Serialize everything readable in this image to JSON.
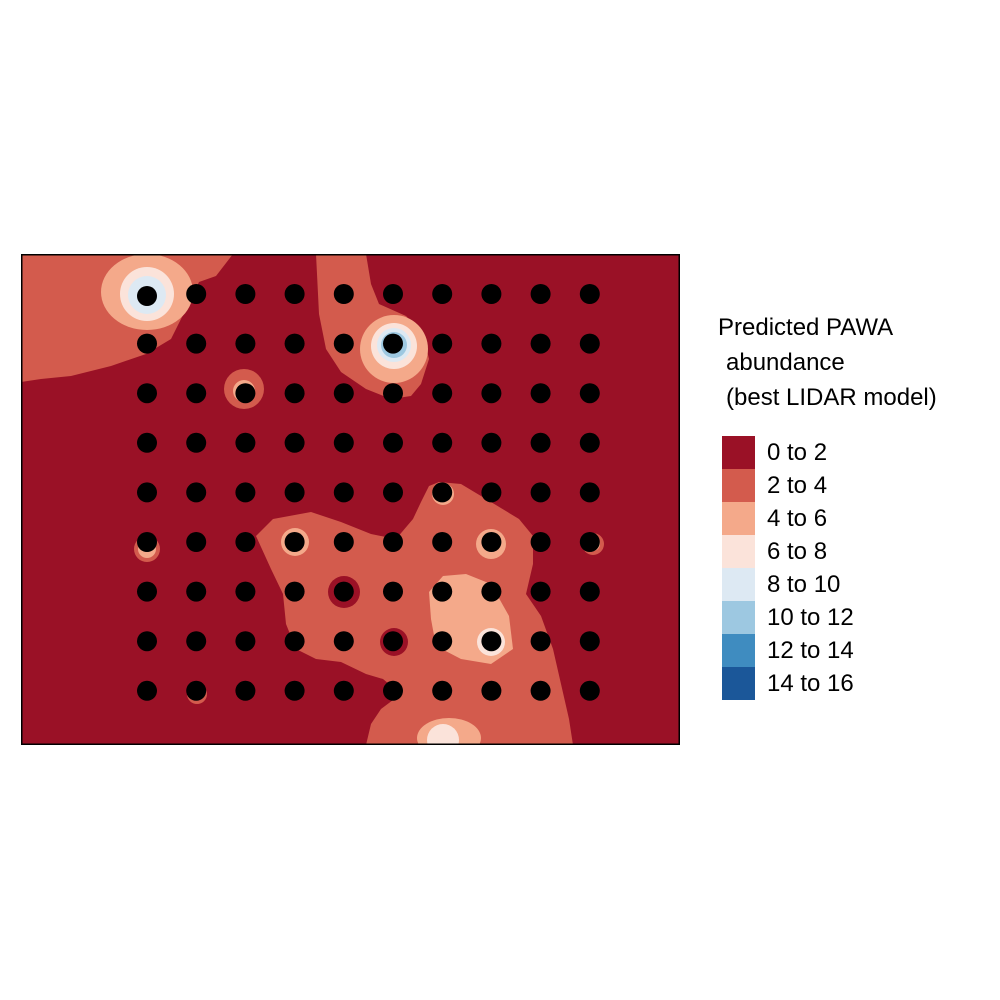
{
  "legend": {
    "title_lines": [
      "Predicted PAWA",
      "abundance",
      "(best LIDAR model)"
    ],
    "classes": [
      {
        "label": "0 to 2",
        "color": "#9A1126"
      },
      {
        "label": "2 to 4",
        "color": "#D35B4D"
      },
      {
        "label": "4 to 6",
        "color": "#F4A98A"
      },
      {
        "label": "6 to 8",
        "color": "#FBE3DA"
      },
      {
        "label": "8 to 10",
        "color": "#DDE9F3"
      },
      {
        "label": "10 to 12",
        "color": "#9DC8E1"
      },
      {
        "label": "12 to 14",
        "color": "#3F8CC0"
      },
      {
        "label": "14 to 16",
        "color": "#1B5799"
      }
    ]
  },
  "map": {
    "point_color": "#000000",
    "grid_columns": 10,
    "grid_rows": 9,
    "extra_point_row": 1
  }
}
